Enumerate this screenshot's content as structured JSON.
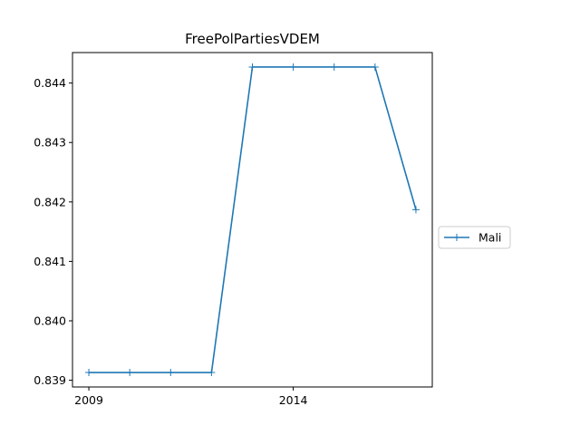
{
  "chart_data": {
    "type": "line",
    "title": "FreePolPartiesVDEM",
    "xlabel": "",
    "ylabel": "",
    "x": [
      2009,
      2010,
      2011,
      2012,
      2013,
      2014,
      2015,
      2016,
      2017
    ],
    "series": [
      {
        "name": "Mali",
        "color": "#1f77b4",
        "marker": "plus",
        "values": [
          0.83913,
          0.83913,
          0.83913,
          0.83913,
          0.84427,
          0.84427,
          0.84427,
          0.84427,
          0.84187
        ]
      }
    ],
    "xticks": [
      {
        "value": 2009,
        "label": "2009"
      },
      {
        "value": 2014,
        "label": "2014"
      }
    ],
    "yticks": [
      {
        "value": 0.839,
        "label": "0.839"
      },
      {
        "value": 0.84,
        "label": "0.840"
      },
      {
        "value": 0.841,
        "label": "0.841"
      },
      {
        "value": 0.842,
        "label": "0.842"
      },
      {
        "value": 0.843,
        "label": "0.843"
      },
      {
        "value": 0.844,
        "label": "0.844"
      }
    ],
    "xlim": [
      2008.6,
      2017.4
    ],
    "ylim": [
      0.838887,
      0.844513
    ],
    "grid": false,
    "legend_position": "right-outside"
  }
}
